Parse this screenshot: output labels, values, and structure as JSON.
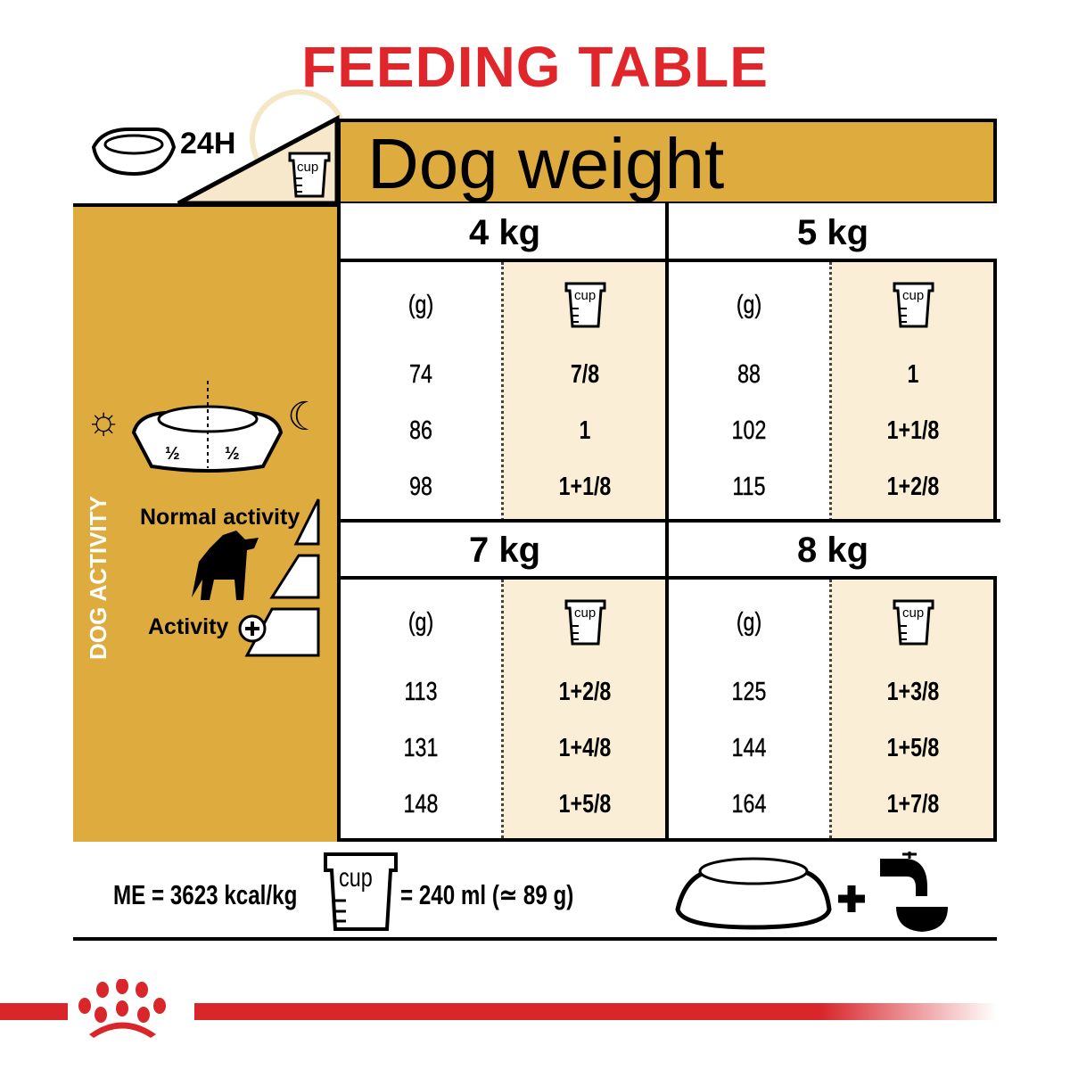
{
  "title": "FEEDING TABLE",
  "header": {
    "period": "24H",
    "cup_label": "cup",
    "dog_weight": "Dog weight"
  },
  "activity": {
    "axis_label": "DOG ACTIVITY",
    "half_left": "½",
    "half_right": "½",
    "normal": "Normal activity",
    "plus": "Activity"
  },
  "units": {
    "grams": "(g)",
    "cup": "cup"
  },
  "weights": [
    {
      "label": "4 kg",
      "rows": [
        [
          "74",
          "7/8"
        ],
        [
          "86",
          "1"
        ],
        [
          "98",
          "1+1/8"
        ]
      ]
    },
    {
      "label": "5 kg",
      "rows": [
        [
          "88",
          "1"
        ],
        [
          "102",
          "1+1/8"
        ],
        [
          "115",
          "1+2/8"
        ]
      ]
    },
    {
      "label": "7 kg",
      "rows": [
        [
          "113",
          "1+2/8"
        ],
        [
          "131",
          "1+4/8"
        ],
        [
          "148",
          "1+5/8"
        ]
      ]
    },
    {
      "label": "8 kg",
      "rows": [
        [
          "125",
          "1+3/8"
        ],
        [
          "144",
          "1+5/8"
        ],
        [
          "164",
          "1+7/8"
        ]
      ]
    }
  ],
  "footer": {
    "energy": "ME = 3623 kcal/kg",
    "cup_label": "cup",
    "cup_equiv": "= 240 ml (≃ 89 g)",
    "plus": "+"
  },
  "colors": {
    "brand_red": "#e1262b",
    "gold": "#deab3f",
    "cream": "#faeed6"
  }
}
